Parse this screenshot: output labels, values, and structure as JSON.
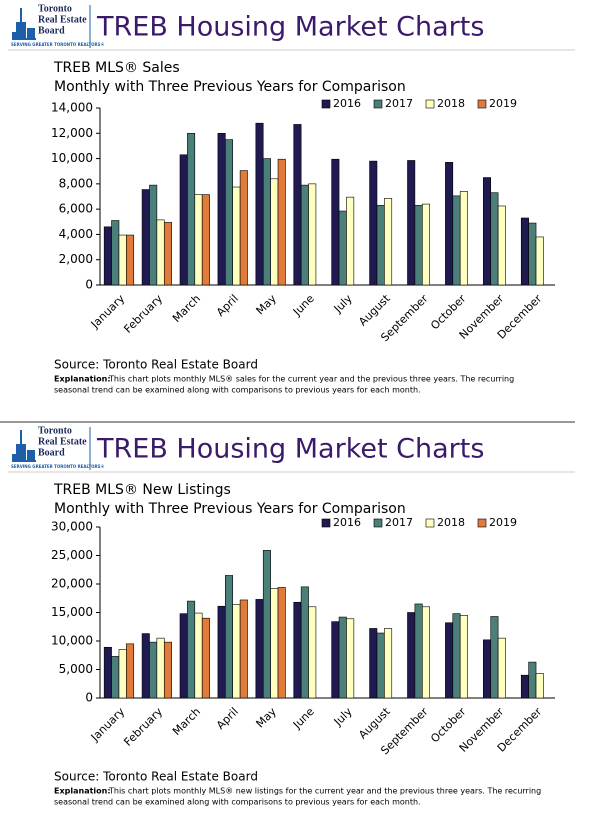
{
  "chart_data": [
    {
      "type": "bar",
      "logo": [
        "Toronto",
        "Real Estate",
        "Board"
      ],
      "logo_tagline": "SERVING GREATER TORONTO REALTORS®",
      "banner": "TREB Housing Market Charts",
      "title": "TREB MLS® Sales",
      "subtitle": "Monthly with Three Previous Years for Comparison",
      "categories": [
        "January",
        "February",
        "March",
        "April",
        "May",
        "June",
        "July",
        "August",
        "September",
        "October",
        "November",
        "December"
      ],
      "series": [
        {
          "name": "2016",
          "color": "#1f1a4f",
          "values": [
            4600,
            7550,
            10300,
            12000,
            12800,
            12700,
            9950,
            9800,
            9850,
            9700,
            8500,
            5300
          ]
        },
        {
          "name": "2017",
          "color": "#4a7f7a",
          "values": [
            5100,
            7900,
            12000,
            11500,
            10000,
            7900,
            5850,
            6300,
            6300,
            7050,
            7300,
            4900
          ]
        },
        {
          "name": "2018",
          "color": "#ffffc0",
          "values": [
            3950,
            5150,
            7150,
            7750,
            8400,
            8000,
            6950,
            6850,
            6400,
            7400,
            6250,
            3800
          ]
        },
        {
          "name": "2019",
          "color": "#e07b39",
          "values": [
            3950,
            4950,
            7150,
            9050,
            9950,
            null,
            null,
            null,
            null,
            null,
            null,
            null
          ]
        }
      ],
      "ylim": [
        0,
        14000
      ],
      "yticks": [
        0,
        {
          "value": 2000,
          "label": "2,000"
        },
        {
          "value": 4000,
          "label": "4,000"
        },
        {
          "value": 6000,
          "label": "6,000"
        },
        {
          "value": 8000,
          "label": "8,000"
        },
        {
          "value": 10000,
          "label": "10,000"
        },
        {
          "value": 12000,
          "label": "12,000"
        },
        {
          "value": 14000,
          "label": "14,000"
        }
      ],
      "grid": false,
      "source": "Source: Toronto Real Estate Board",
      "explanation_label": "Explanation:",
      "explanation_lines": [
        "This chart plots monthly MLS® sales for the current year and the previous three years. The recurring",
        "seasonal trend can be examined along with comparisons to previous years for each month."
      ]
    },
    {
      "type": "bar",
      "logo": [
        "Toronto",
        "Real Estate",
        "Board"
      ],
      "logo_tagline": "SERVING GREATER TORONTO REALTORS®",
      "banner": "TREB Housing Market Charts",
      "title": "TREB MLS® New Listings",
      "subtitle": "Monthly with Three Previous Years for Comparison",
      "categories": [
        "January",
        "February",
        "March",
        "April",
        "May",
        "June",
        "July",
        "August",
        "September",
        "October",
        "November",
        "December"
      ],
      "series": [
        {
          "name": "2016",
          "color": "#1f1a4f",
          "values": [
            8900,
            11300,
            14800,
            16100,
            17300,
            16800,
            13400,
            12200,
            15000,
            13200,
            10200,
            4000
          ]
        },
        {
          "name": "2017",
          "color": "#4a7f7a",
          "values": [
            7300,
            9800,
            17000,
            21500,
            25900,
            19500,
            14200,
            11400,
            16500,
            14800,
            14300,
            6300
          ]
        },
        {
          "name": "2018",
          "color": "#ffffc0",
          "values": [
            8500,
            10500,
            14900,
            16400,
            19200,
            16000,
            13900,
            12200,
            16000,
            14500,
            10500,
            4300
          ]
        },
        {
          "name": "2019",
          "color": "#e07b39",
          "values": [
            9500,
            9800,
            14000,
            17200,
            19400,
            null,
            null,
            null,
            null,
            null,
            null,
            null
          ]
        }
      ],
      "ylim": [
        0,
        30000
      ],
      "yticks": [
        0,
        {
          "value": 5000,
          "label": "5,000"
        },
        {
          "value": 10000,
          "label": "10,000"
        },
        {
          "value": 15000,
          "label": "15,000"
        },
        {
          "value": 20000,
          "label": "20,000"
        },
        {
          "value": 25000,
          "label": "25,000"
        },
        {
          "value": 30000,
          "label": "30,000"
        }
      ],
      "grid": false,
      "source": "Source: Toronto Real Estate Board",
      "explanation_label": "Explanation:",
      "explanation_lines": [
        "This chart plots monthly MLS® new listings for the current year and the previous three years. The recurring",
        "seasonal trend can be examined along with comparisons to previous years for each month."
      ]
    }
  ]
}
